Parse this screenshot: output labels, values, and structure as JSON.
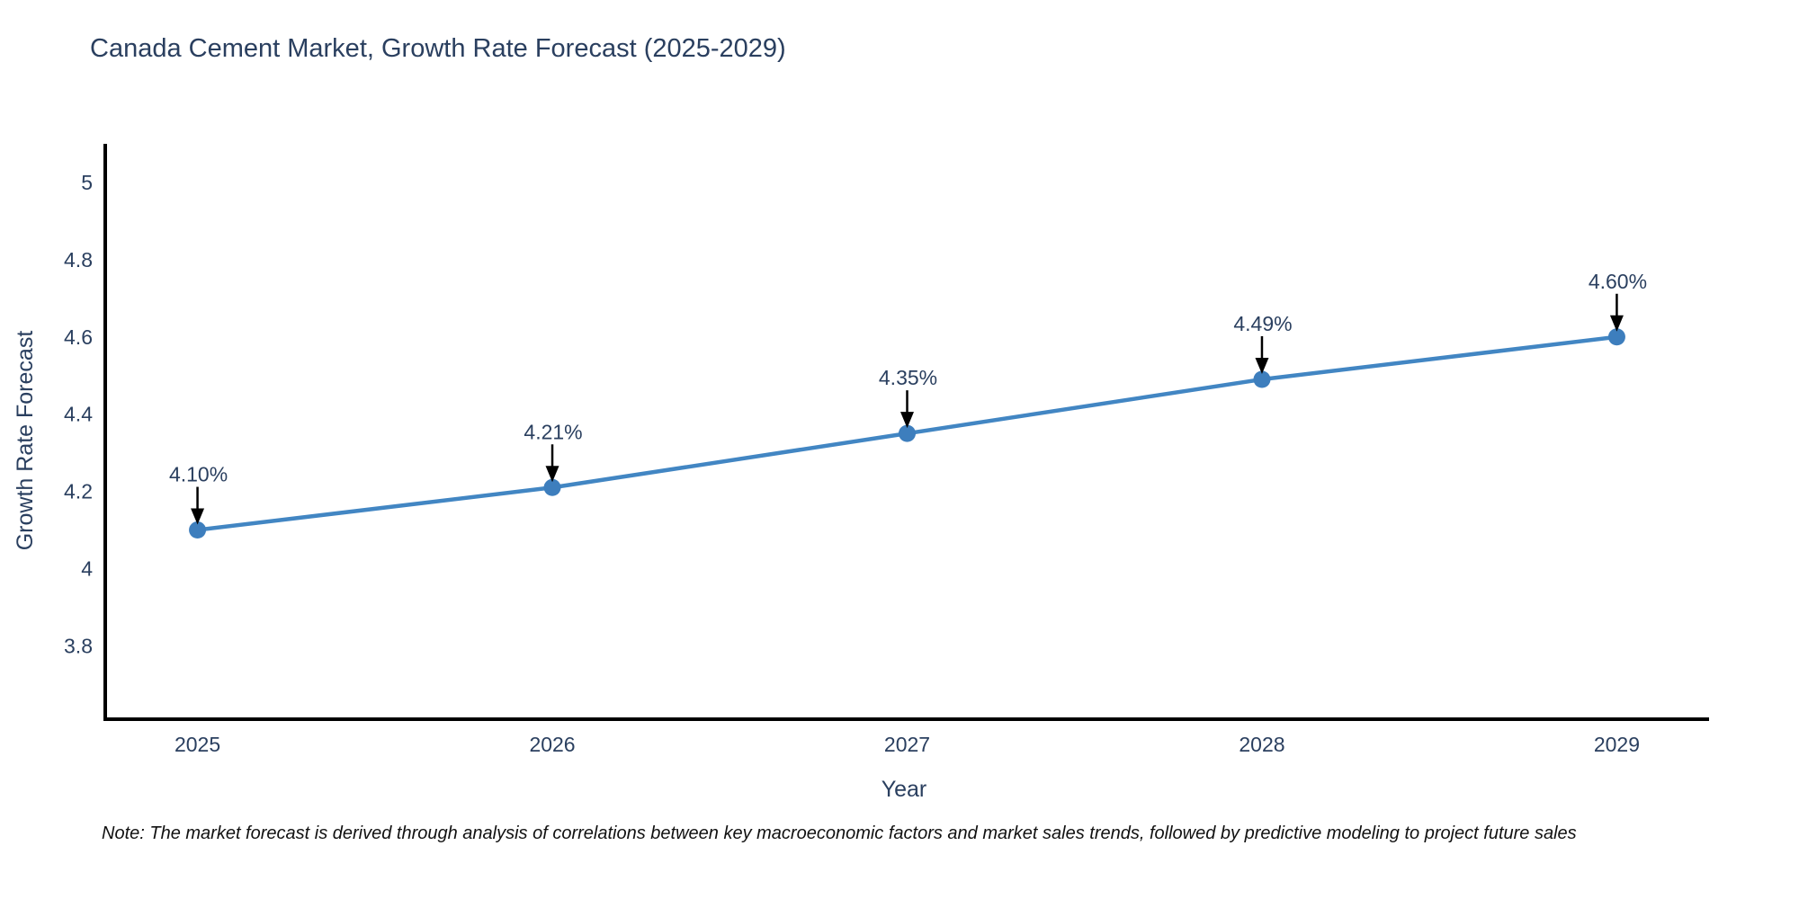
{
  "title": "Canada Cement Market, Growth Rate Forecast (2025-2029)",
  "note": "Note: The market forecast is derived through analysis of correlations between key macroeconomic factors and market sales trends, followed by predictive modeling to project future sales",
  "chart_data": {
    "type": "line",
    "title": "Canada Cement Market, Growth Rate Forecast (2025-2029)",
    "xlabel": "Year",
    "ylabel": "Growth Rate Forecast",
    "x": [
      2025,
      2026,
      2027,
      2028,
      2029
    ],
    "values": [
      4.1,
      4.21,
      4.35,
      4.49,
      4.6
    ],
    "point_labels": [
      "4.10%",
      "4.21%",
      "4.35%",
      "4.49%",
      "4.60%"
    ],
    "xtick_labels": [
      "2025",
      "2026",
      "2027",
      "2028",
      "2029"
    ],
    "yticks": [
      3.8,
      4,
      4.2,
      4.4,
      4.6,
      4.8,
      5
    ],
    "ytick_labels": [
      "3.8",
      "4",
      "4.2",
      "4.4",
      "4.6",
      "4.8",
      "5"
    ],
    "xlim": [
      2024.74,
      2029.26
    ],
    "ylim": [
      3.61,
      5.1
    ],
    "grid": false,
    "legend": false,
    "line_color": "#4286c3",
    "marker_color": "#3d7ebd",
    "axis_color": "#000000",
    "text_color": "#2a3f5f",
    "annotation_arrow_color": "#000000"
  }
}
